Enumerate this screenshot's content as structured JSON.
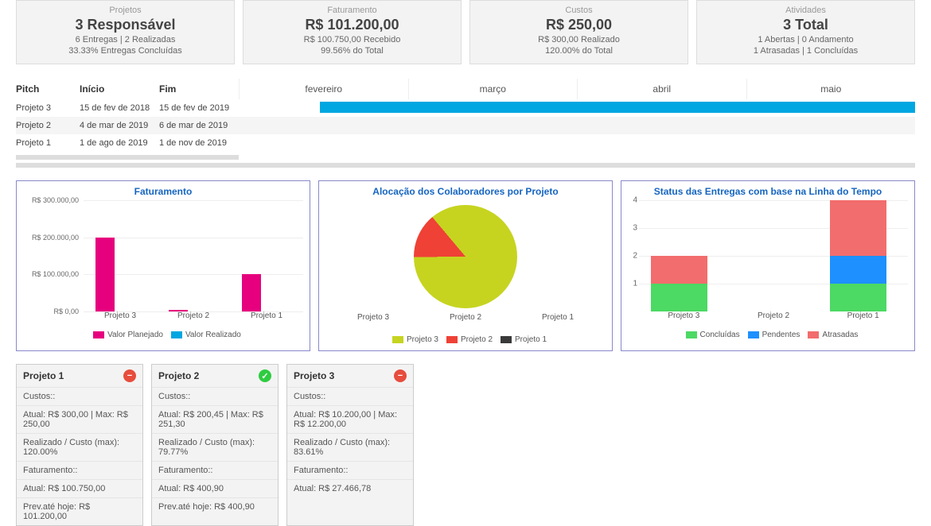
{
  "colors": {
    "accent": "#00a7e1",
    "magenta": "#e6007e",
    "yellow_green": "#c6d420",
    "red": "#ef4136",
    "green": "#4cd964",
    "blue": "#1e90ff",
    "salmon": "#f26d6d",
    "dark": "#3a3a3a",
    "status_ok": "#2ecc40",
    "status_bad": "#e74c3c"
  },
  "kpi": [
    {
      "label": "Projetos",
      "main": "3 Responsável",
      "sub1": "6 Entregas | 2 Realizadas",
      "sub2": "33.33% Entregas Concluídas"
    },
    {
      "label": "Faturamento",
      "main": "R$ 101.200,00",
      "sub1": "R$ 100.750,00 Recebido",
      "sub2": "99.56% do Total"
    },
    {
      "label": "Custos",
      "main": "R$ 250,00",
      "sub1": "R$ 300,00 Realizado",
      "sub2": "120.00% do Total"
    },
    {
      "label": "Atividades",
      "main": "3 Total",
      "sub1": "1 Abertas | 0 Andamento",
      "sub2": "1 Atrasadas | 1 Concluídas"
    }
  ],
  "gantt": {
    "headers": {
      "c1": "Pitch",
      "c2": "Início",
      "c3": "Fim"
    },
    "months": [
      "fevereiro",
      "março",
      "abril",
      "maio"
    ],
    "rows": [
      {
        "name": "Projeto 3",
        "start": "15 de fev de 2018",
        "end": "15 de fev de 2019",
        "bar_start_pct": 12,
        "bar_end_pct": 100
      },
      {
        "name": "Projeto 2",
        "start": "4 de mar de 2019",
        "end": "6 de mar de 2019",
        "bar_start_pct": null,
        "bar_end_pct": null
      },
      {
        "name": "Projeto 1",
        "start": "1 de ago de 2019",
        "end": "1 de nov de 2019",
        "bar_start_pct": null,
        "bar_end_pct": null
      }
    ]
  },
  "chart_faturamento": {
    "title": "Faturamento",
    "yticks": [
      "R$ 300.000,00",
      "R$ 200.000,00",
      "R$ 100.000,00",
      "R$ 0,00"
    ],
    "ymax": 300000,
    "categories": [
      "Projeto 3",
      "Projeto 2",
      "Projeto 1"
    ],
    "series": [
      {
        "name": "Valor Planejado",
        "color": "#e6007e",
        "values": [
          200000,
          4000,
          100000
        ]
      },
      {
        "name": "Valor Realizado",
        "color": "#00a7e1",
        "values": [
          0,
          0,
          0
        ]
      }
    ]
  },
  "chart_alocacao": {
    "title": "Alocação dos Colaboradores por Projeto",
    "categories": [
      "Projeto 3",
      "Projeto 2",
      "Projeto 1"
    ],
    "slices": [
      {
        "name": "Projeto 3",
        "color": "#c6d420",
        "pct": 86
      },
      {
        "name": "Projeto 2",
        "color": "#ef4136",
        "pct": 14
      },
      {
        "name": "Projeto 1",
        "color": "#3a3a3a",
        "pct": 0
      }
    ]
  },
  "chart_status": {
    "title": "Status das Entregas com base na Linha do Tempo",
    "ymax": 4,
    "yticks": [
      4,
      3,
      2,
      1
    ],
    "categories": [
      "Projeto 3",
      "Projeto 2",
      "Projeto 1"
    ],
    "series": [
      {
        "name": "Concluídas",
        "color": "#4cd964"
      },
      {
        "name": "Pendentes",
        "color": "#1e90ff"
      },
      {
        "name": "Atrasadas",
        "color": "#f26d6d"
      }
    ],
    "stack": [
      [
        1,
        0,
        1
      ],
      [
        0,
        0,
        0
      ],
      [
        1,
        1,
        2
      ]
    ]
  },
  "project_cards": [
    {
      "title": "Projeto 1",
      "status": "bad",
      "lines": [
        "Custos::",
        "Atual: R$ 300,00 | Max: R$ 250,00",
        "Realizado / Custo (max): 120.00%",
        "Faturamento::",
        "Atual: R$ 100.750,00",
        "Prev.até hoje: R$ 101.200,00"
      ]
    },
    {
      "title": "Projeto 2",
      "status": "ok",
      "lines": [
        "Custos::",
        "Atual: R$ 200,45 | Max: R$ 251,30",
        "Realizado / Custo (max): 79.77%",
        "Faturamento::",
        "Atual: R$ 400,90",
        "Prev.até hoje: R$ 400,90"
      ]
    },
    {
      "title": "Projeto 3",
      "status": "bad",
      "lines": [
        "Custos::",
        "Atual: R$ 10.200,00 | Max: R$ 12.200,00",
        "Realizado / Custo (max): 83.61%",
        "Faturamento::",
        "Atual: R$ 27.466,78"
      ]
    }
  ]
}
